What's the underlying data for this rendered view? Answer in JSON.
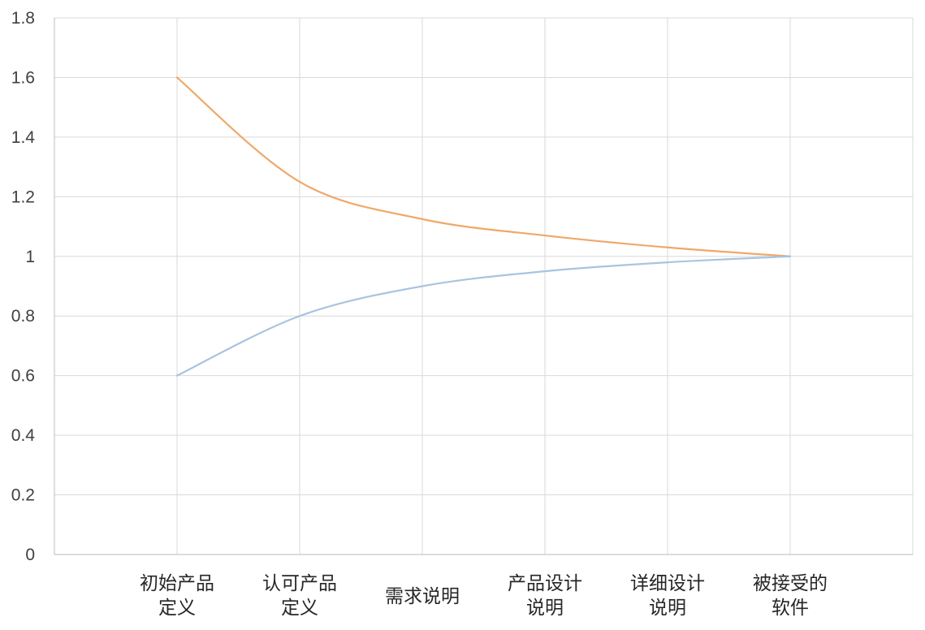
{
  "chart_data": {
    "type": "line",
    "title": "",
    "xlabel": "",
    "ylabel": "",
    "categories": [
      [
        "初始产品",
        "定义"
      ],
      [
        "认可产品",
        "定义"
      ],
      [
        "需求说明"
      ],
      [
        "产品设计",
        "说明"
      ],
      [
        "详细设计",
        "说明"
      ],
      [
        "被接受的",
        "软件"
      ]
    ],
    "series": [
      {
        "color": "#f0a868",
        "values": [
          1.6,
          1.25,
          1.125,
          1.07,
          1.03,
          1.0
        ]
      },
      {
        "color": "#a8c4e0",
        "values": [
          0.6,
          0.8,
          0.9,
          0.95,
          0.98,
          1.0
        ]
      }
    ],
    "ylim": [
      0,
      1.8
    ],
    "yticks": [
      0,
      0.2,
      0.4,
      0.6,
      0.8,
      1,
      1.2,
      1.4,
      1.6,
      1.8
    ],
    "grid": true,
    "legend": "none"
  }
}
